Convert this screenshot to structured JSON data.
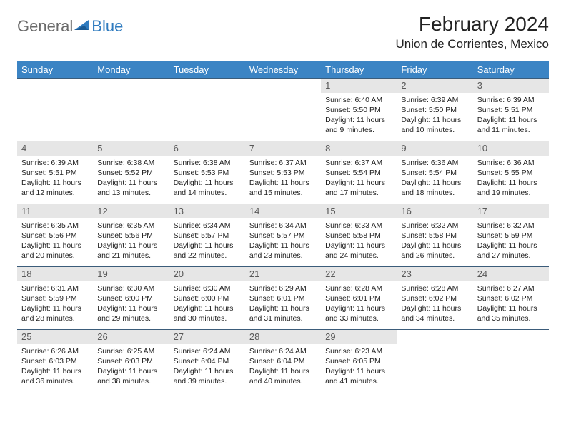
{
  "logo": {
    "text1": "General",
    "text2": "Blue"
  },
  "title": "February 2024",
  "location": "Union de Corrientes, Mexico",
  "colors": {
    "header_bg": "#3b84c4",
    "header_fg": "#ffffff",
    "daynum_bg": "#e6e6e6",
    "daynum_fg": "#595959",
    "rule": "#3b5c7a",
    "text": "#222222",
    "logo_gray": "#6b6b6b",
    "logo_blue": "#2f7bbf"
  },
  "dayHeaders": [
    "Sunday",
    "Monday",
    "Tuesday",
    "Wednesday",
    "Thursday",
    "Friday",
    "Saturday"
  ],
  "weeks": [
    [
      {
        "day": "",
        "lines": []
      },
      {
        "day": "",
        "lines": []
      },
      {
        "day": "",
        "lines": []
      },
      {
        "day": "",
        "lines": []
      },
      {
        "day": "1",
        "lines": [
          "Sunrise: 6:40 AM",
          "Sunset: 5:50 PM",
          "Daylight: 11 hours",
          "and 9 minutes."
        ]
      },
      {
        "day": "2",
        "lines": [
          "Sunrise: 6:39 AM",
          "Sunset: 5:50 PM",
          "Daylight: 11 hours",
          "and 10 minutes."
        ]
      },
      {
        "day": "3",
        "lines": [
          "Sunrise: 6:39 AM",
          "Sunset: 5:51 PM",
          "Daylight: 11 hours",
          "and 11 minutes."
        ]
      }
    ],
    [
      {
        "day": "4",
        "lines": [
          "Sunrise: 6:39 AM",
          "Sunset: 5:51 PM",
          "Daylight: 11 hours",
          "and 12 minutes."
        ]
      },
      {
        "day": "5",
        "lines": [
          "Sunrise: 6:38 AM",
          "Sunset: 5:52 PM",
          "Daylight: 11 hours",
          "and 13 minutes."
        ]
      },
      {
        "day": "6",
        "lines": [
          "Sunrise: 6:38 AM",
          "Sunset: 5:53 PM",
          "Daylight: 11 hours",
          "and 14 minutes."
        ]
      },
      {
        "day": "7",
        "lines": [
          "Sunrise: 6:37 AM",
          "Sunset: 5:53 PM",
          "Daylight: 11 hours",
          "and 15 minutes."
        ]
      },
      {
        "day": "8",
        "lines": [
          "Sunrise: 6:37 AM",
          "Sunset: 5:54 PM",
          "Daylight: 11 hours",
          "and 17 minutes."
        ]
      },
      {
        "day": "9",
        "lines": [
          "Sunrise: 6:36 AM",
          "Sunset: 5:54 PM",
          "Daylight: 11 hours",
          "and 18 minutes."
        ]
      },
      {
        "day": "10",
        "lines": [
          "Sunrise: 6:36 AM",
          "Sunset: 5:55 PM",
          "Daylight: 11 hours",
          "and 19 minutes."
        ]
      }
    ],
    [
      {
        "day": "11",
        "lines": [
          "Sunrise: 6:35 AM",
          "Sunset: 5:56 PM",
          "Daylight: 11 hours",
          "and 20 minutes."
        ]
      },
      {
        "day": "12",
        "lines": [
          "Sunrise: 6:35 AM",
          "Sunset: 5:56 PM",
          "Daylight: 11 hours",
          "and 21 minutes."
        ]
      },
      {
        "day": "13",
        "lines": [
          "Sunrise: 6:34 AM",
          "Sunset: 5:57 PM",
          "Daylight: 11 hours",
          "and 22 minutes."
        ]
      },
      {
        "day": "14",
        "lines": [
          "Sunrise: 6:34 AM",
          "Sunset: 5:57 PM",
          "Daylight: 11 hours",
          "and 23 minutes."
        ]
      },
      {
        "day": "15",
        "lines": [
          "Sunrise: 6:33 AM",
          "Sunset: 5:58 PM",
          "Daylight: 11 hours",
          "and 24 minutes."
        ]
      },
      {
        "day": "16",
        "lines": [
          "Sunrise: 6:32 AM",
          "Sunset: 5:58 PM",
          "Daylight: 11 hours",
          "and 26 minutes."
        ]
      },
      {
        "day": "17",
        "lines": [
          "Sunrise: 6:32 AM",
          "Sunset: 5:59 PM",
          "Daylight: 11 hours",
          "and 27 minutes."
        ]
      }
    ],
    [
      {
        "day": "18",
        "lines": [
          "Sunrise: 6:31 AM",
          "Sunset: 5:59 PM",
          "Daylight: 11 hours",
          "and 28 minutes."
        ]
      },
      {
        "day": "19",
        "lines": [
          "Sunrise: 6:30 AM",
          "Sunset: 6:00 PM",
          "Daylight: 11 hours",
          "and 29 minutes."
        ]
      },
      {
        "day": "20",
        "lines": [
          "Sunrise: 6:30 AM",
          "Sunset: 6:00 PM",
          "Daylight: 11 hours",
          "and 30 minutes."
        ]
      },
      {
        "day": "21",
        "lines": [
          "Sunrise: 6:29 AM",
          "Sunset: 6:01 PM",
          "Daylight: 11 hours",
          "and 31 minutes."
        ]
      },
      {
        "day": "22",
        "lines": [
          "Sunrise: 6:28 AM",
          "Sunset: 6:01 PM",
          "Daylight: 11 hours",
          "and 33 minutes."
        ]
      },
      {
        "day": "23",
        "lines": [
          "Sunrise: 6:28 AM",
          "Sunset: 6:02 PM",
          "Daylight: 11 hours",
          "and 34 minutes."
        ]
      },
      {
        "day": "24",
        "lines": [
          "Sunrise: 6:27 AM",
          "Sunset: 6:02 PM",
          "Daylight: 11 hours",
          "and 35 minutes."
        ]
      }
    ],
    [
      {
        "day": "25",
        "lines": [
          "Sunrise: 6:26 AM",
          "Sunset: 6:03 PM",
          "Daylight: 11 hours",
          "and 36 minutes."
        ]
      },
      {
        "day": "26",
        "lines": [
          "Sunrise: 6:25 AM",
          "Sunset: 6:03 PM",
          "Daylight: 11 hours",
          "and 38 minutes."
        ]
      },
      {
        "day": "27",
        "lines": [
          "Sunrise: 6:24 AM",
          "Sunset: 6:04 PM",
          "Daylight: 11 hours",
          "and 39 minutes."
        ]
      },
      {
        "day": "28",
        "lines": [
          "Sunrise: 6:24 AM",
          "Sunset: 6:04 PM",
          "Daylight: 11 hours",
          "and 40 minutes."
        ]
      },
      {
        "day": "29",
        "lines": [
          "Sunrise: 6:23 AM",
          "Sunset: 6:05 PM",
          "Daylight: 11 hours",
          "and 41 minutes."
        ]
      },
      {
        "day": "",
        "lines": []
      },
      {
        "day": "",
        "lines": []
      }
    ]
  ]
}
